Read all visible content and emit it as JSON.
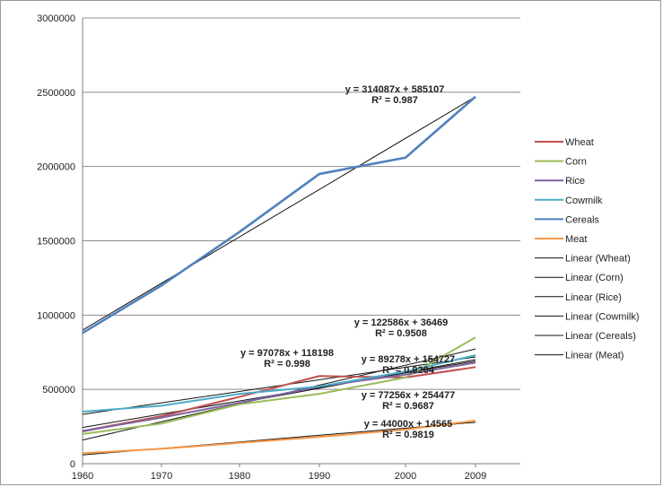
{
  "chart_data": {
    "type": "line",
    "title": "",
    "xlabel": "",
    "ylabel": "",
    "x": [
      1960,
      1970,
      1980,
      1990,
      2000,
      2009
    ],
    "x_tick_labels": [
      "1960",
      "1970",
      "1980",
      "1990",
      "2000",
      "2009"
    ],
    "ylim": [
      0,
      3000000
    ],
    "y_tick_labels": [
      "0",
      "500000",
      "1000000",
      "1500000",
      "2000000",
      "2500000",
      "3000000"
    ],
    "y_ticks": [
      0,
      500000,
      1000000,
      1500000,
      2000000,
      2500000,
      3000000
    ],
    "grid": "horizontal",
    "legend_position": "right",
    "series": [
      {
        "name": "Wheat",
        "color": "#c0504d",
        "values": [
          220000,
          320000,
          450000,
          590000,
          580000,
          650000
        ]
      },
      {
        "name": "Corn",
        "color": "#9bbb59",
        "values": [
          200000,
          270000,
          400000,
          470000,
          580000,
          850000
        ]
      },
      {
        "name": "Rice",
        "color": "#8064a2",
        "values": [
          220000,
          310000,
          410000,
          520000,
          600000,
          680000
        ]
      },
      {
        "name": "Cowmilk",
        "color": "#4bacc6",
        "values": [
          350000,
          390000,
          470000,
          520000,
          620000,
          730000
        ]
      },
      {
        "name": "Cereals",
        "color": "#4f81bd",
        "values": [
          880000,
          1200000,
          1560000,
          1950000,
          2060000,
          2470000
        ]
      },
      {
        "name": "Meat",
        "color": "#f79646",
        "values": [
          70000,
          100000,
          140000,
          180000,
          230000,
          290000
        ]
      }
    ],
    "trendlines": [
      {
        "name": "Linear (Wheat)",
        "slope": 97078,
        "intercept": 118198
      },
      {
        "name": "Linear (Corn)",
        "slope": 122586,
        "intercept": 36469
      },
      {
        "name": "Linear (Rice)",
        "slope": 89278,
        "intercept": 154727
      },
      {
        "name": "Linear (Cowmilk)",
        "slope": 77256,
        "intercept": 254477
      },
      {
        "name": "Linear (Cereals)",
        "slope": 314087,
        "intercept": 585107
      },
      {
        "name": "Linear (Meat)",
        "slope": 44000,
        "intercept": 14565
      }
    ],
    "annotations": [
      {
        "line1": "y = 314087x + 585107",
        "line2": "R² = 0.987"
      },
      {
        "line1": "y = 122586x + 36469",
        "line2": "R² = 0.9508"
      },
      {
        "line1": "y = 97078x + 118198",
        "line2": "R² = 0.998"
      },
      {
        "line1": "y = 89278x + 154727",
        "line2": "R² = 0.9264"
      },
      {
        "line1": "y = 77256x + 254477",
        "line2": "R² = 0.9687"
      },
      {
        "line1": "y = 44000x + 14565",
        "line2": "R² = 0.9819"
      }
    ]
  }
}
